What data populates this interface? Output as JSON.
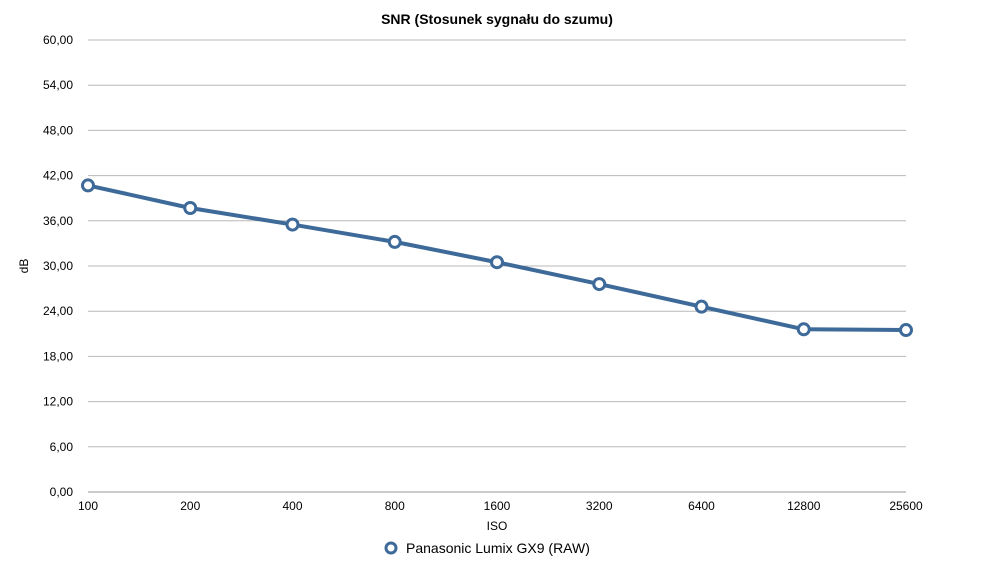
{
  "chart_data": {
    "type": "line",
    "title": "SNR (Stosunek sygnału do szumu)",
    "xlabel": "ISO",
    "ylabel": "dB",
    "categories": [
      "100",
      "200",
      "400",
      "800",
      "1600",
      "3200",
      "6400",
      "12800",
      "25600"
    ],
    "yticks": [
      "0,00",
      "6,00",
      "12,00",
      "18,00",
      "24,00",
      "30,00",
      "36,00",
      "42,00",
      "48,00",
      "54,00",
      "60,00"
    ],
    "ylim": [
      0,
      60
    ],
    "grid": true,
    "legend_position": "bottom-center",
    "series": [
      {
        "name": "Panasonic Lumix GX9 (RAW)",
        "color": "#3d6a99",
        "values": [
          40.7,
          37.7,
          35.5,
          33.2,
          30.5,
          27.6,
          24.6,
          21.6,
          21.5
        ]
      }
    ]
  }
}
